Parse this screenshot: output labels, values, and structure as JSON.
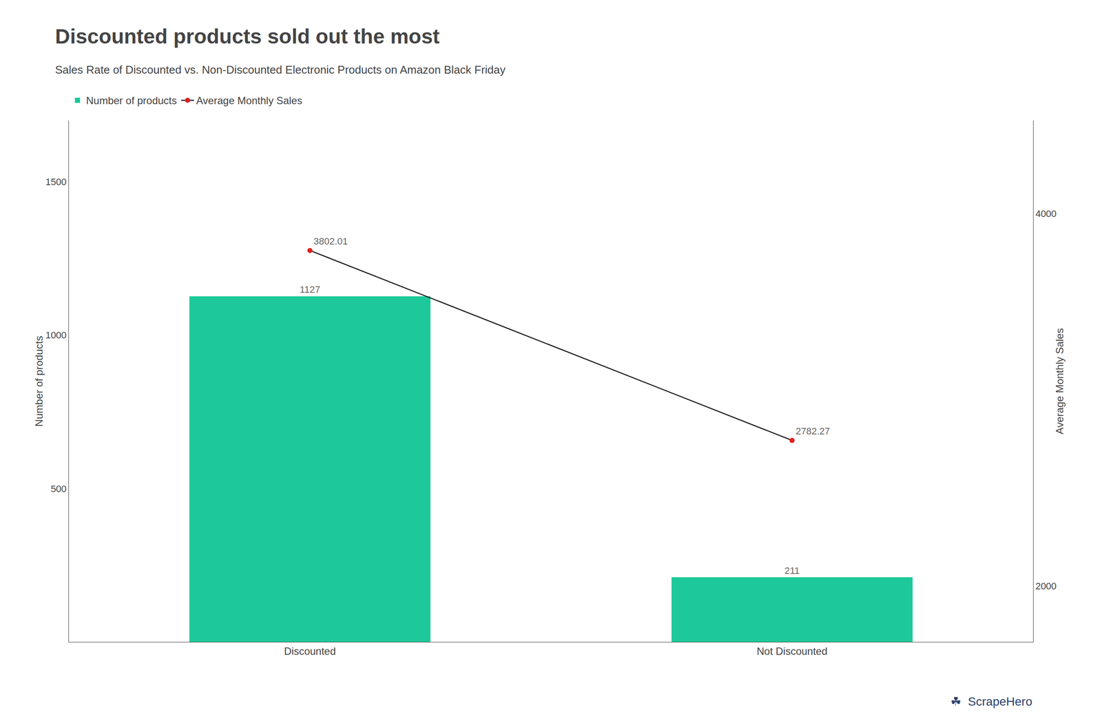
{
  "chart_data": {
    "type": "bar",
    "title": "Discounted products sold out the most",
    "subtitle": "Sales Rate of Discounted vs. Non-Discounted Electronic Products on Amazon Black Friday",
    "categories": [
      "Discounted",
      "Not Discounted"
    ],
    "series": [
      {
        "name": "Number of products",
        "type": "bar",
        "color": "#1DC99A",
        "values": [
          1127,
          211
        ],
        "data_labels": true
      },
      {
        "name": "Average Monthly Sales",
        "type": "line",
        "axis": "y2",
        "color": "#1a1a1a",
        "colors": [
          "#e02020",
          "#e02020"
        ],
        "marker": "circle",
        "values": [
          3802.01,
          2782.27
        ],
        "data_labels": true
      }
    ],
    "ylabel": "Number of products",
    "y2label": "Average Monthly Sales",
    "ylim": [
      0,
      1700
    ],
    "yticks": [
      500,
      1000,
      1500
    ],
    "y2lim": [
      1700,
      4500
    ],
    "y2ticks": [
      2000,
      4000
    ],
    "grid": false,
    "legend": "top left",
    "annotations": [
      {
        "text": "☘  ScrapeHero",
        "color": "#2c3e6b"
      }
    ]
  }
}
